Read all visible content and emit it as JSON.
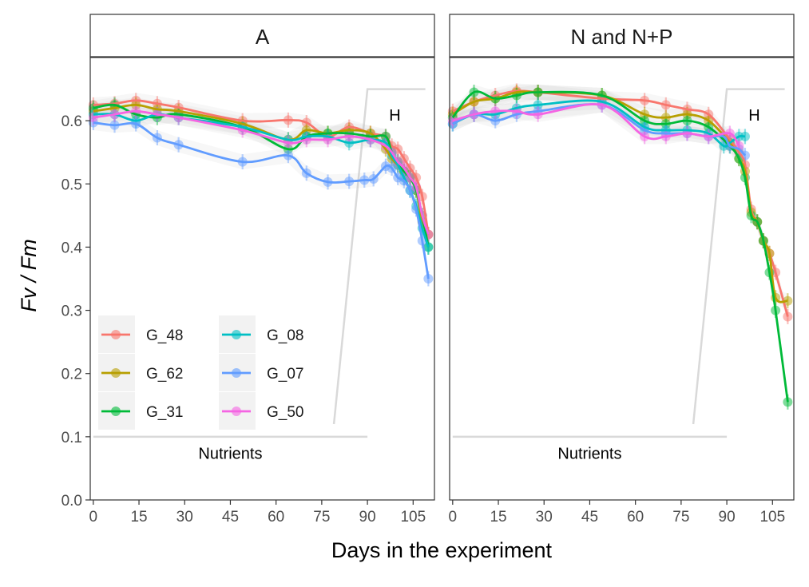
{
  "chart_data": {
    "type": "line",
    "facets": [
      "A",
      "N and N+P"
    ],
    "xlabel": "Days in the experiment",
    "ylabel": "Fv / Fm",
    "xlim": [
      -1,
      112
    ],
    "ylim": [
      0,
      0.7
    ],
    "xticks": [
      0,
      15,
      30,
      45,
      60,
      75,
      90,
      105
    ],
    "yticks": [
      0.0,
      0.1,
      0.2,
      0.3,
      0.4,
      0.5,
      0.6
    ],
    "ytick_labels": [
      "0.0",
      "0.1",
      "0.2",
      "0.3",
      "0.4",
      "0.5",
      "0.6"
    ],
    "grid": false,
    "legend_position": "bottom-left inside",
    "legend": [
      {
        "name": "G_48",
        "color": "#F8766D"
      },
      {
        "name": "G_62",
        "color": "#B79F00"
      },
      {
        "name": "G_31",
        "color": "#00BA38"
      },
      {
        "name": "G_08",
        "color": "#00BFC4"
      },
      {
        "name": "G_07",
        "color": "#619CFF"
      },
      {
        "name": "G_50",
        "color": "#F564E3"
      }
    ],
    "annotations": {
      "nutrients_label": "Nutrients",
      "h_label": "H",
      "nutrients_line": [
        [
          0,
          0.1
        ],
        [
          90,
          0.1
        ]
      ],
      "h_line": [
        [
          79,
          0.12
        ],
        [
          90,
          0.65
        ],
        [
          109,
          0.65
        ]
      ]
    },
    "panels": [
      {
        "title": "A",
        "series": [
          {
            "name": "G_48",
            "color": "#F8766D",
            "x": [
              0,
              7,
              14,
              21,
              28,
              49,
              64,
              70,
              77,
              84,
              91,
              96,
              98,
              100,
              102,
              104,
              106,
              108,
              110
            ],
            "y": [
              0.625,
              0.627,
              0.632,
              0.627,
              0.621,
              0.6,
              0.601,
              0.597,
              0.575,
              0.59,
              0.58,
              0.575,
              0.56,
              0.555,
              0.54,
              0.525,
              0.51,
              0.48,
              0.42
            ]
          },
          {
            "name": "G_62",
            "color": "#B79F00",
            "x": [
              0,
              7,
              14,
              21,
              28,
              49,
              64,
              70,
              77,
              84,
              91,
              96,
              98,
              100,
              102,
              104,
              106,
              108,
              110
            ],
            "y": [
              0.615,
              0.62,
              0.625,
              0.618,
              0.615,
              0.595,
              0.57,
              0.585,
              0.58,
              0.585,
              0.58,
              0.555,
              0.54,
              0.53,
              0.52,
              0.51,
              0.49,
              0.44,
              0.42
            ]
          },
          {
            "name": "G_31",
            "color": "#00BA38",
            "x": [
              0,
              7,
              14,
              21,
              28,
              49,
              64,
              70,
              77,
              84,
              91,
              96,
              98,
              100,
              102,
              104,
              106,
              108,
              110
            ],
            "y": [
              0.62,
              0.625,
              0.61,
              0.605,
              0.61,
              0.59,
              0.555,
              0.575,
              0.58,
              0.58,
              0.575,
              0.575,
              0.55,
              0.535,
              0.52,
              0.51,
              0.49,
              0.45,
              0.4
            ]
          },
          {
            "name": "G_08",
            "color": "#00BFC4",
            "x": [
              0,
              7,
              14,
              21,
              28,
              49,
              64,
              70,
              77,
              84,
              91,
              96,
              98,
              100,
              102,
              104,
              106,
              108,
              110
            ],
            "y": [
              0.61,
              0.61,
              0.6,
              0.61,
              0.605,
              0.59,
              0.57,
              0.575,
              0.575,
              0.565,
              0.57,
              0.565,
              0.545,
              0.53,
              0.51,
              0.49,
              0.465,
              0.43,
              0.4
            ]
          },
          {
            "name": "G_07",
            "color": "#619CFF",
            "x": [
              0,
              7,
              14,
              21,
              28,
              49,
              64,
              70,
              77,
              84,
              89,
              92,
              96,
              98,
              100,
              102,
              104,
              106,
              108,
              110
            ],
            "y": [
              0.597,
              0.593,
              0.595,
              0.573,
              0.562,
              0.535,
              0.545,
              0.517,
              0.503,
              0.504,
              0.506,
              0.508,
              0.528,
              0.525,
              0.51,
              0.505,
              0.49,
              0.46,
              0.41,
              0.35
            ]
          },
          {
            "name": "G_50",
            "color": "#F564E3",
            "x": [
              0,
              7,
              14,
              21,
              28,
              49,
              64,
              70,
              77,
              84,
              91,
              96,
              98,
              100,
              102,
              104,
              106,
              108,
              110
            ],
            "y": [
              0.605,
              0.61,
              0.615,
              0.61,
              0.605,
              0.585,
              0.565,
              0.57,
              0.57,
              0.575,
              0.57,
              0.56,
              0.55,
              0.535,
              0.525,
              0.51,
              0.495,
              0.45,
              0.42
            ]
          }
        ]
      },
      {
        "title": "N and N+P",
        "series": [
          {
            "name": "G_48",
            "color": "#F8766D",
            "x": [
              0,
              7,
              14,
              21,
              28,
              49,
              63,
              70,
              77,
              84,
              91,
              94,
              96,
              98,
              100,
              102,
              104,
              106,
              110
            ],
            "y": [
              0.615,
              0.63,
              0.64,
              0.647,
              0.645,
              0.635,
              0.632,
              0.625,
              0.618,
              0.61,
              0.57,
              0.55,
              0.53,
              0.46,
              0.44,
              0.41,
              0.39,
              0.36,
              0.29
            ]
          },
          {
            "name": "G_62",
            "color": "#B79F00",
            "x": [
              0,
              7,
              14,
              21,
              28,
              49,
              63,
              70,
              77,
              84,
              91,
              94,
              96,
              98,
              100,
              102,
              104,
              106,
              110
            ],
            "y": [
              0.61,
              0.63,
              0.635,
              0.645,
              0.645,
              0.64,
              0.61,
              0.605,
              0.61,
              0.6,
              0.565,
              0.54,
              0.52,
              0.455,
              0.44,
              0.41,
              0.39,
              0.32,
              0.315
            ]
          },
          {
            "name": "G_31",
            "color": "#00BA38",
            "x": [
              0,
              7,
              14,
              21,
              28,
              49,
              63,
              70,
              77,
              84,
              91,
              94,
              96,
              98,
              100,
              102,
              104,
              106,
              110
            ],
            "y": [
              0.605,
              0.645,
              0.635,
              0.64,
              0.645,
              0.64,
              0.6,
              0.595,
              0.6,
              0.59,
              0.56,
              0.54,
              0.51,
              0.45,
              0.44,
              0.41,
              0.36,
              0.3,
              0.155
            ]
          },
          {
            "name": "G_08",
            "color": "#00BFC4",
            "x": [
              0,
              7,
              14,
              21,
              28,
              49,
              63,
              70,
              77,
              84,
              89,
              91,
              94,
              96
            ],
            "y": [
              0.595,
              0.61,
              0.61,
              0.62,
              0.625,
              0.63,
              0.59,
              0.585,
              0.585,
              0.58,
              0.56,
              0.565,
              0.575,
              0.575
            ]
          },
          {
            "name": "G_07",
            "color": "#619CFF",
            "x": [
              0,
              7,
              14,
              21,
              28,
              49,
              63,
              70,
              77,
              84,
              89,
              91,
              94,
              96
            ],
            "y": [
              0.595,
              0.61,
              0.6,
              0.61,
              0.615,
              0.625,
              0.585,
              0.58,
              0.58,
              0.575,
              0.575,
              0.56,
              0.555,
              0.545
            ]
          },
          {
            "name": "G_50",
            "color": "#F564E3",
            "x": [
              0,
              7,
              14,
              21,
              28,
              49,
              63,
              70,
              77,
              84,
              91,
              94
            ],
            "y": [
              0.6,
              0.61,
              0.615,
              0.615,
              0.61,
              0.625,
              0.575,
              0.575,
              0.58,
              0.575,
              0.58,
              0.56
            ]
          }
        ]
      }
    ]
  }
}
